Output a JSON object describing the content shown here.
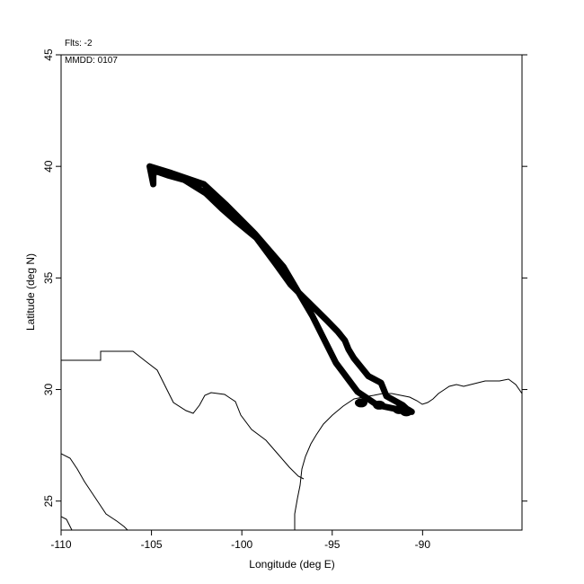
{
  "chart_data": {
    "type": "line",
    "title": "",
    "xlabel": "Longitude (deg E)",
    "ylabel": "Latitude (deg N)",
    "xlim": [
      -110,
      -84.5
    ],
    "ylim": [
      23.7,
      45
    ],
    "xticks": [
      -110,
      -105,
      -100,
      -95,
      -90
    ],
    "yticks": [
      25,
      30,
      35,
      40,
      45
    ],
    "xtick_labels": [
      "-110",
      "-105",
      "-100",
      "-95",
      "-90"
    ],
    "ytick_labels": [
      "25",
      "30",
      "35",
      "40",
      "45"
    ],
    "grid": false,
    "annotations": [
      "Flts: -2",
      "MMDD: 0107"
    ],
    "colors": {
      "track": "#000000",
      "coast": "#000000"
    },
    "series": [
      {
        "x": [
          -90.7,
          -91.1,
          -92.0,
          -92.3,
          -93.0,
          -93.4,
          -93.8,
          -94.1,
          -94.3,
          -94.7,
          -95.3,
          -96.3,
          -97.3,
          -98.1,
          -99.2,
          -100.4,
          -101.1,
          -102.0,
          -103.2,
          -104.1,
          -104.8,
          -104.9,
          -104.9,
          -105.1,
          -103.9,
          -102.1,
          -100.9,
          -99.3,
          -97.7,
          -96.1,
          -94.8,
          -93.6,
          -92.5,
          -91.9,
          -91.3,
          -90.8,
          -90.6
        ]
      }
    ],
    "track_y": [
      29.0,
      29.3,
      29.7,
      30.3,
      30.6,
      31.0,
      31.4,
      31.8,
      32.2,
      32.6,
      33.1,
      33.9,
      34.7,
      35.6,
      36.8,
      37.6,
      38.1,
      38.8,
      39.4,
      39.6,
      39.8,
      39.6,
      39.2,
      40.0,
      39.7,
      39.2,
      38.3,
      37.0,
      35.5,
      33.3,
      31.2,
      29.9,
      29.3,
      29.2,
      29.1,
      29.1,
      29.0
    ]
  }
}
